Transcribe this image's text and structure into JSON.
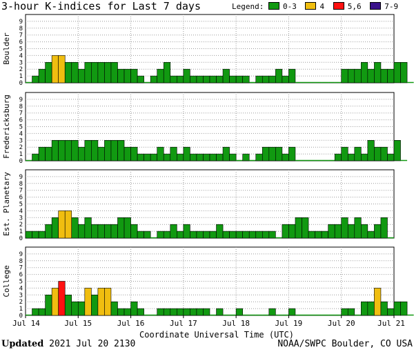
{
  "title": "3-hour K-indices for Last 7 days",
  "legend": {
    "label": "Legend:",
    "items": [
      {
        "label": "0-3",
        "color": "#119911"
      },
      {
        "label": "4",
        "color": "#f0be10"
      },
      {
        "label": "5,6",
        "color": "#ff1111"
      },
      {
        "label": "7-9",
        "color": "#3a128a"
      }
    ]
  },
  "footer": {
    "updated_label": "Updated",
    "updated_value": "2021 Jul 20 2130",
    "credit": "NOAA/SWPC Boulder, CO USA"
  },
  "chart_data": {
    "type": "bar",
    "xlabel": "Coordinate Universal Time (UTC)",
    "x_ticks": [
      "Jul 14",
      "Jul 15",
      "Jul 16",
      "Jul 17",
      "Jul 18",
      "Jul 19",
      "Jul 20",
      "Jul 21"
    ],
    "ylim": [
      0,
      9
    ],
    "y_ticks": [
      0,
      1,
      2,
      3,
      4,
      5,
      6,
      7,
      8,
      9
    ],
    "bins_per_day": 8,
    "grid": true,
    "series": [
      {
        "name": "Boulder",
        "values": [
          0,
          1,
          2,
          3,
          4,
          4,
          3,
          3,
          2,
          3,
          3,
          3,
          3,
          3,
          2,
          2,
          2,
          1,
          0,
          1,
          2,
          3,
          1,
          1,
          2,
          1,
          1,
          1,
          1,
          1,
          2,
          1,
          1,
          1,
          0,
          1,
          1,
          1,
          2,
          1,
          2,
          0,
          0,
          0,
          0,
          0,
          0,
          0,
          2,
          2,
          2,
          3,
          2,
          3,
          2,
          2,
          3,
          3,
          0
        ]
      },
      {
        "name": "Fredericksburg",
        "values": [
          0,
          1,
          2,
          2,
          3,
          3,
          3,
          3,
          2,
          3,
          3,
          2,
          3,
          3,
          3,
          2,
          2,
          1,
          1,
          1,
          2,
          1,
          2,
          1,
          2,
          1,
          1,
          1,
          1,
          1,
          2,
          1,
          0,
          1,
          0,
          1,
          2,
          2,
          2,
          1,
          2,
          0,
          0,
          0,
          0,
          0,
          0,
          1,
          2,
          1,
          2,
          1,
          3,
          2,
          2,
          1,
          3,
          0
        ]
      },
      {
        "name": "Est. Planetary",
        "values": [
          1,
          1,
          1,
          2,
          3,
          4,
          4,
          3,
          2,
          3,
          2,
          2,
          2,
          2,
          3,
          3,
          2,
          1,
          1,
          0,
          1,
          1,
          2,
          1,
          2,
          1,
          1,
          1,
          1,
          2,
          1,
          1,
          1,
          1,
          1,
          1,
          1,
          1,
          0,
          2,
          2,
          3,
          3,
          1,
          1,
          1,
          2,
          2,
          3,
          2,
          3,
          2,
          1,
          2,
          3,
          0
        ]
      },
      {
        "name": "College",
        "values": [
          0,
          1,
          1,
          3,
          4,
          5,
          3,
          2,
          2,
          4,
          3,
          4,
          4,
          2,
          1,
          1,
          2,
          1,
          0,
          0,
          1,
          1,
          1,
          1,
          1,
          1,
          1,
          1,
          0,
          1,
          0,
          0,
          1,
          0,
          0,
          0,
          0,
          1,
          0,
          0,
          1,
          0,
          0,
          0,
          0,
          0,
          0,
          0,
          1,
          1,
          0,
          2,
          2,
          4,
          2,
          1,
          2,
          2,
          0
        ]
      }
    ]
  }
}
